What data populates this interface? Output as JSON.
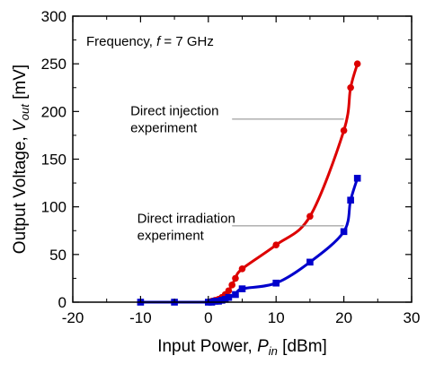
{
  "chart_data": {
    "type": "scatter",
    "title": "",
    "xlabel": {
      "main": "Input Power, ",
      "var": "P",
      "sub": "in",
      "unit": " [dBm]"
    },
    "ylabel": {
      "main": "Output Voltage, ",
      "var": "V",
      "sub": "out",
      "unit": " [mV]"
    },
    "xlim": [
      -20,
      30
    ],
    "ylim": [
      0,
      300
    ],
    "xticks": [
      -20,
      -10,
      0,
      10,
      20,
      30
    ],
    "yticks": [
      0,
      50,
      100,
      150,
      200,
      250,
      300
    ],
    "xtick_labels": [
      "-20",
      "-10",
      "0",
      "10",
      "20",
      "30"
    ],
    "ytick_labels": [
      "0",
      "50",
      "100",
      "150",
      "200",
      "250",
      "300"
    ],
    "grid": false,
    "frequency_label": {
      "prefix": "Frequency, ",
      "var": "f",
      "suffix": " = 7 GHz"
    },
    "series": [
      {
        "label_lines": [
          "Direct injection",
          "experiment"
        ],
        "color": "#dd0000",
        "marker": "circle",
        "x": [
          0.5,
          1,
          1.5,
          2,
          2.5,
          3,
          3.5,
          4,
          5,
          10,
          15,
          20,
          21,
          22
        ],
        "y": [
          1,
          2,
          3,
          5,
          8,
          12,
          18,
          25,
          35,
          60,
          90,
          180,
          225,
          250
        ]
      },
      {
        "label_lines": [
          "Direct irradiation",
          "experiment"
        ],
        "color": "#0000cc",
        "marker": "square",
        "x": [
          -10,
          -5,
          0,
          0.5,
          1,
          1.5,
          2,
          2.5,
          3,
          4,
          5,
          10,
          15,
          20,
          21,
          22
        ],
        "y": [
          0,
          0,
          0,
          0,
          1,
          1,
          2,
          3,
          5,
          8,
          14,
          20,
          42,
          74,
          107,
          130
        ]
      }
    ]
  }
}
